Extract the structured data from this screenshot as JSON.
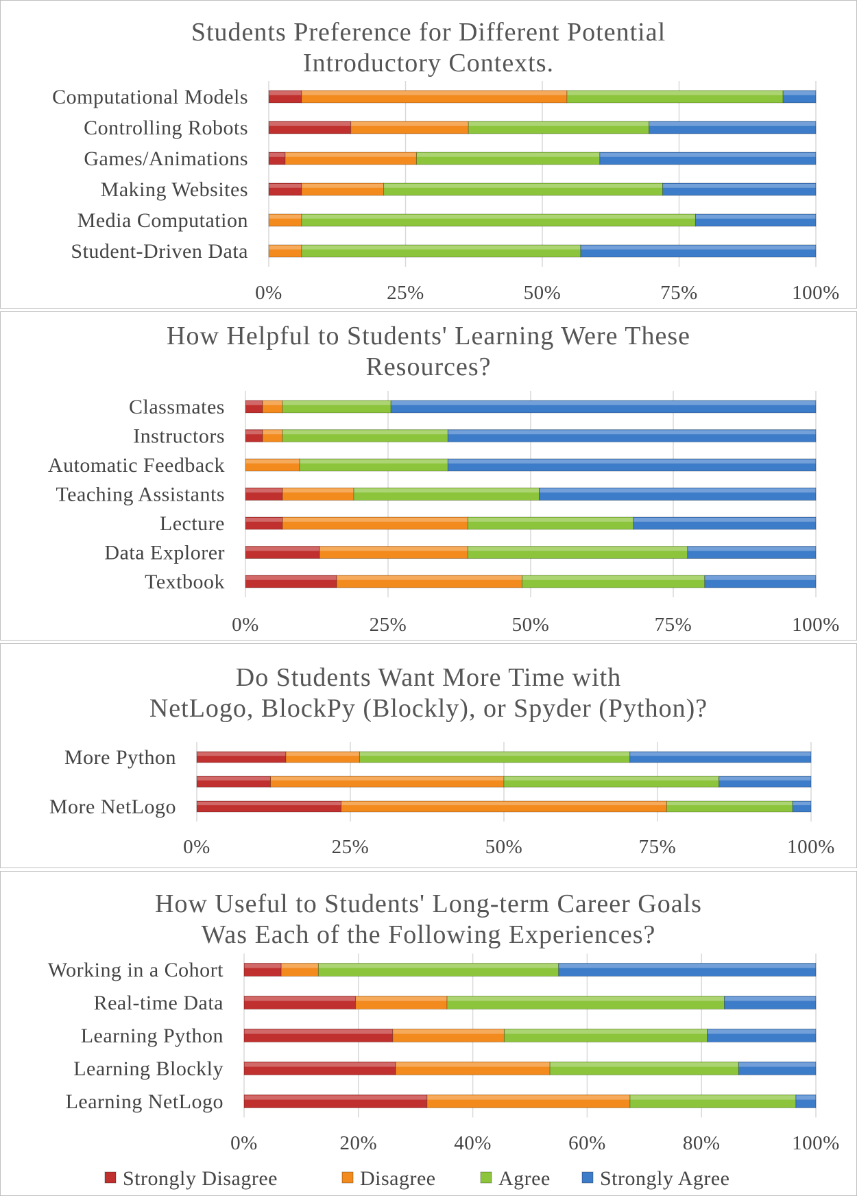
{
  "colors": {
    "Strongly Disagree": "#c0302e",
    "Disagree": "#f28a1e",
    "Agree": "#8cc43c",
    "Strongly Agree": "#3d7cc9",
    "grid": "#d9d9d9"
  },
  "legend": [
    "Strongly Disagree",
    "Disagree",
    "Agree",
    "Strongly Agree"
  ],
  "chart_data": [
    {
      "type": "bar",
      "stacked": true,
      "orientation": "horizontal",
      "title_lines": [
        "Students Preference for Different Potential",
        "Introductory Contexts."
      ],
      "categories": [
        "Computational Models",
        "Controlling Robots",
        "Games/Animations",
        "Making Websites",
        "Media Computation",
        "Student-Driven Data"
      ],
      "xticks": [
        "0%",
        "25%",
        "50%",
        "75%",
        "100%"
      ],
      "xlim": [
        0,
        100
      ],
      "series": [
        {
          "name": "Strongly Disagree",
          "values": [
            6,
            15,
            3,
            6,
            0,
            0
          ]
        },
        {
          "name": "Disagree",
          "values": [
            48.5,
            21.5,
            24,
            15,
            6,
            6
          ]
        },
        {
          "name": "Agree",
          "values": [
            39.5,
            33,
            33.5,
            51,
            72,
            51
          ]
        },
        {
          "name": "Strongly Agree",
          "values": [
            6,
            30.5,
            39.5,
            28,
            22,
            43
          ]
        }
      ]
    },
    {
      "type": "bar",
      "stacked": true,
      "orientation": "horizontal",
      "title_lines": [
        "How Helpful to Students' Learning Were These",
        "Resources?"
      ],
      "categories": [
        "Classmates",
        "Instructors",
        "Automatic Feedback",
        "Teaching Assistants",
        "Lecture",
        "Data Explorer",
        "Textbook"
      ],
      "xticks": [
        "0%",
        "25%",
        "50%",
        "75%",
        "100%"
      ],
      "xlim": [
        0,
        100
      ],
      "series": [
        {
          "name": "Strongly Disagree",
          "values": [
            3,
            3,
            0,
            6.5,
            6.5,
            13,
            16
          ]
        },
        {
          "name": "Disagree",
          "values": [
            3.5,
            3.5,
            9.5,
            12.5,
            32.5,
            26,
            32.5
          ]
        },
        {
          "name": "Agree",
          "values": [
            19,
            29,
            26,
            32.5,
            29,
            38.5,
            32
          ]
        },
        {
          "name": "Strongly Agree",
          "values": [
            74.5,
            64.5,
            64.5,
            48.5,
            32,
            22.5,
            19.5
          ]
        }
      ]
    },
    {
      "type": "bar",
      "stacked": true,
      "orientation": "horizontal",
      "title_lines": [
        "Do Students Want More Time with",
        "NetLogo, BlockPy (Blockly), or Spyder (Python)?"
      ],
      "categories": [
        "More Python",
        "",
        "More NetLogo"
      ],
      "xticks": [
        "0%",
        "25%",
        "50%",
        "75%",
        "100%"
      ],
      "xlim": [
        0,
        100
      ],
      "series": [
        {
          "name": "Strongly Disagree",
          "values": [
            14.5,
            12,
            23.5
          ]
        },
        {
          "name": "Disagree",
          "values": [
            12,
            38,
            53
          ]
        },
        {
          "name": "Agree",
          "values": [
            44,
            35,
            20.5
          ]
        },
        {
          "name": "Strongly Agree",
          "values": [
            29.5,
            15,
            3
          ]
        }
      ]
    },
    {
      "type": "bar",
      "stacked": true,
      "orientation": "horizontal",
      "title_lines": [
        "How Useful to Students' Long-term Career Goals",
        "Was Each of the Following Experiences?"
      ],
      "categories": [
        "Working in a Cohort",
        "Real-time Data",
        "Learning Python",
        "Learning Blockly",
        "Learning NetLogo"
      ],
      "xticks": [
        "0%",
        "20%",
        "40%",
        "60%",
        "80%",
        "100%"
      ],
      "xlim": [
        0,
        100
      ],
      "series": [
        {
          "name": "Strongly Disagree",
          "values": [
            6.5,
            19.5,
            26,
            26.5,
            32
          ]
        },
        {
          "name": "Disagree",
          "values": [
            6.5,
            16,
            19.5,
            27,
            35.5
          ]
        },
        {
          "name": "Agree",
          "values": [
            42,
            48.5,
            35.5,
            33,
            29
          ]
        },
        {
          "name": "Strongly Agree",
          "values": [
            45,
            16,
            19,
            13.5,
            3.5
          ]
        }
      ]
    }
  ]
}
